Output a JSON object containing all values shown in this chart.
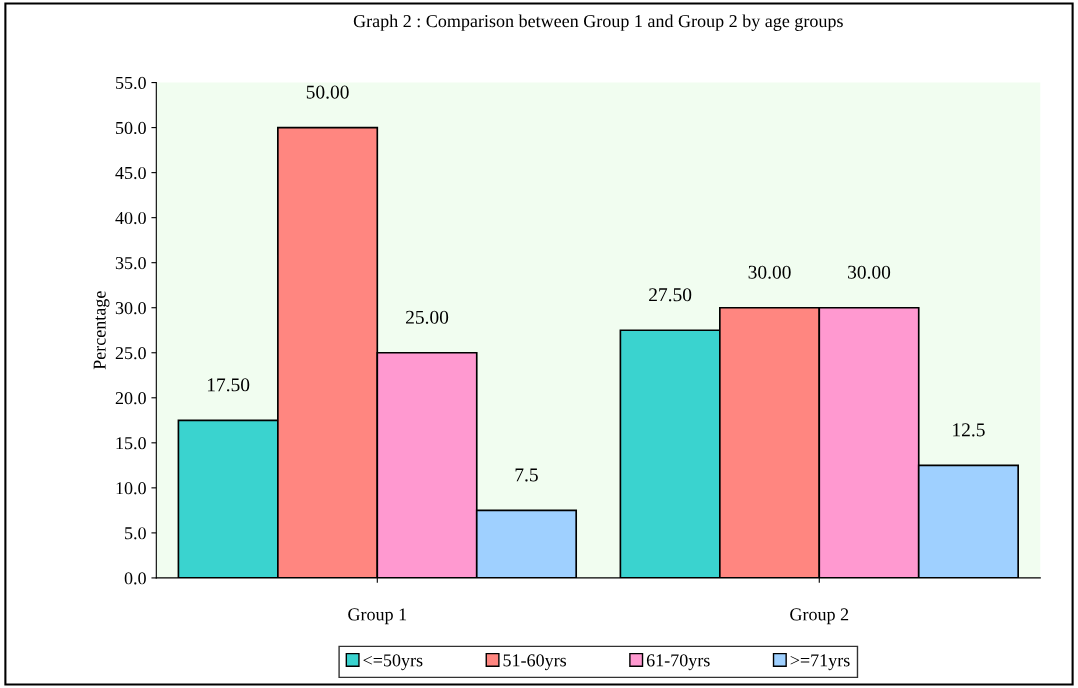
{
  "chart_data": {
    "type": "bar",
    "title": "Graph 2 : Comparison between Group 1 and Group 2 by age groups",
    "ylabel": "Percentage",
    "categories": [
      "Group 1",
      "Group 2"
    ],
    "series": [
      {
        "name": "<=50yrs",
        "color": "#3ad3cf",
        "values": [
          17.5,
          27.5
        ],
        "value_labels": [
          "17.50",
          "27.50"
        ]
      },
      {
        "name": "51-60yrs",
        "color": "#ff8680",
        "values": [
          50,
          30
        ],
        "value_labels": [
          "50.00",
          "30.00"
        ]
      },
      {
        "name": "61-70yrs",
        "color": "#ff99d0",
        "values": [
          25,
          30
        ],
        "value_labels": [
          "25.00",
          "30.00"
        ]
      },
      {
        "name": ">=71yrs",
        "color": "#9fd0ff",
        "values": [
          7.5,
          12.5
        ],
        "value_labels": [
          "7.5",
          "12.5"
        ]
      }
    ],
    "ylim": [
      0,
      55
    ],
    "yticks": [
      {
        "value": 0,
        "label": "0.0"
      },
      {
        "value": 5,
        "label": "5.0"
      },
      {
        "value": 10,
        "label": "10.0"
      },
      {
        "value": 15,
        "label": "15.0"
      },
      {
        "value": 20,
        "label": "20.0"
      },
      {
        "value": 25,
        "label": "25.0"
      },
      {
        "value": 30,
        "label": "30.0"
      },
      {
        "value": 35,
        "label": "35.0"
      },
      {
        "value": 40,
        "label": "40.0"
      },
      {
        "value": 45,
        "label": "45.0"
      },
      {
        "value": 50,
        "label": "50.0"
      },
      {
        "value": 55,
        "label": "55.0"
      }
    ],
    "grid": false,
    "legend": "bottom"
  }
}
